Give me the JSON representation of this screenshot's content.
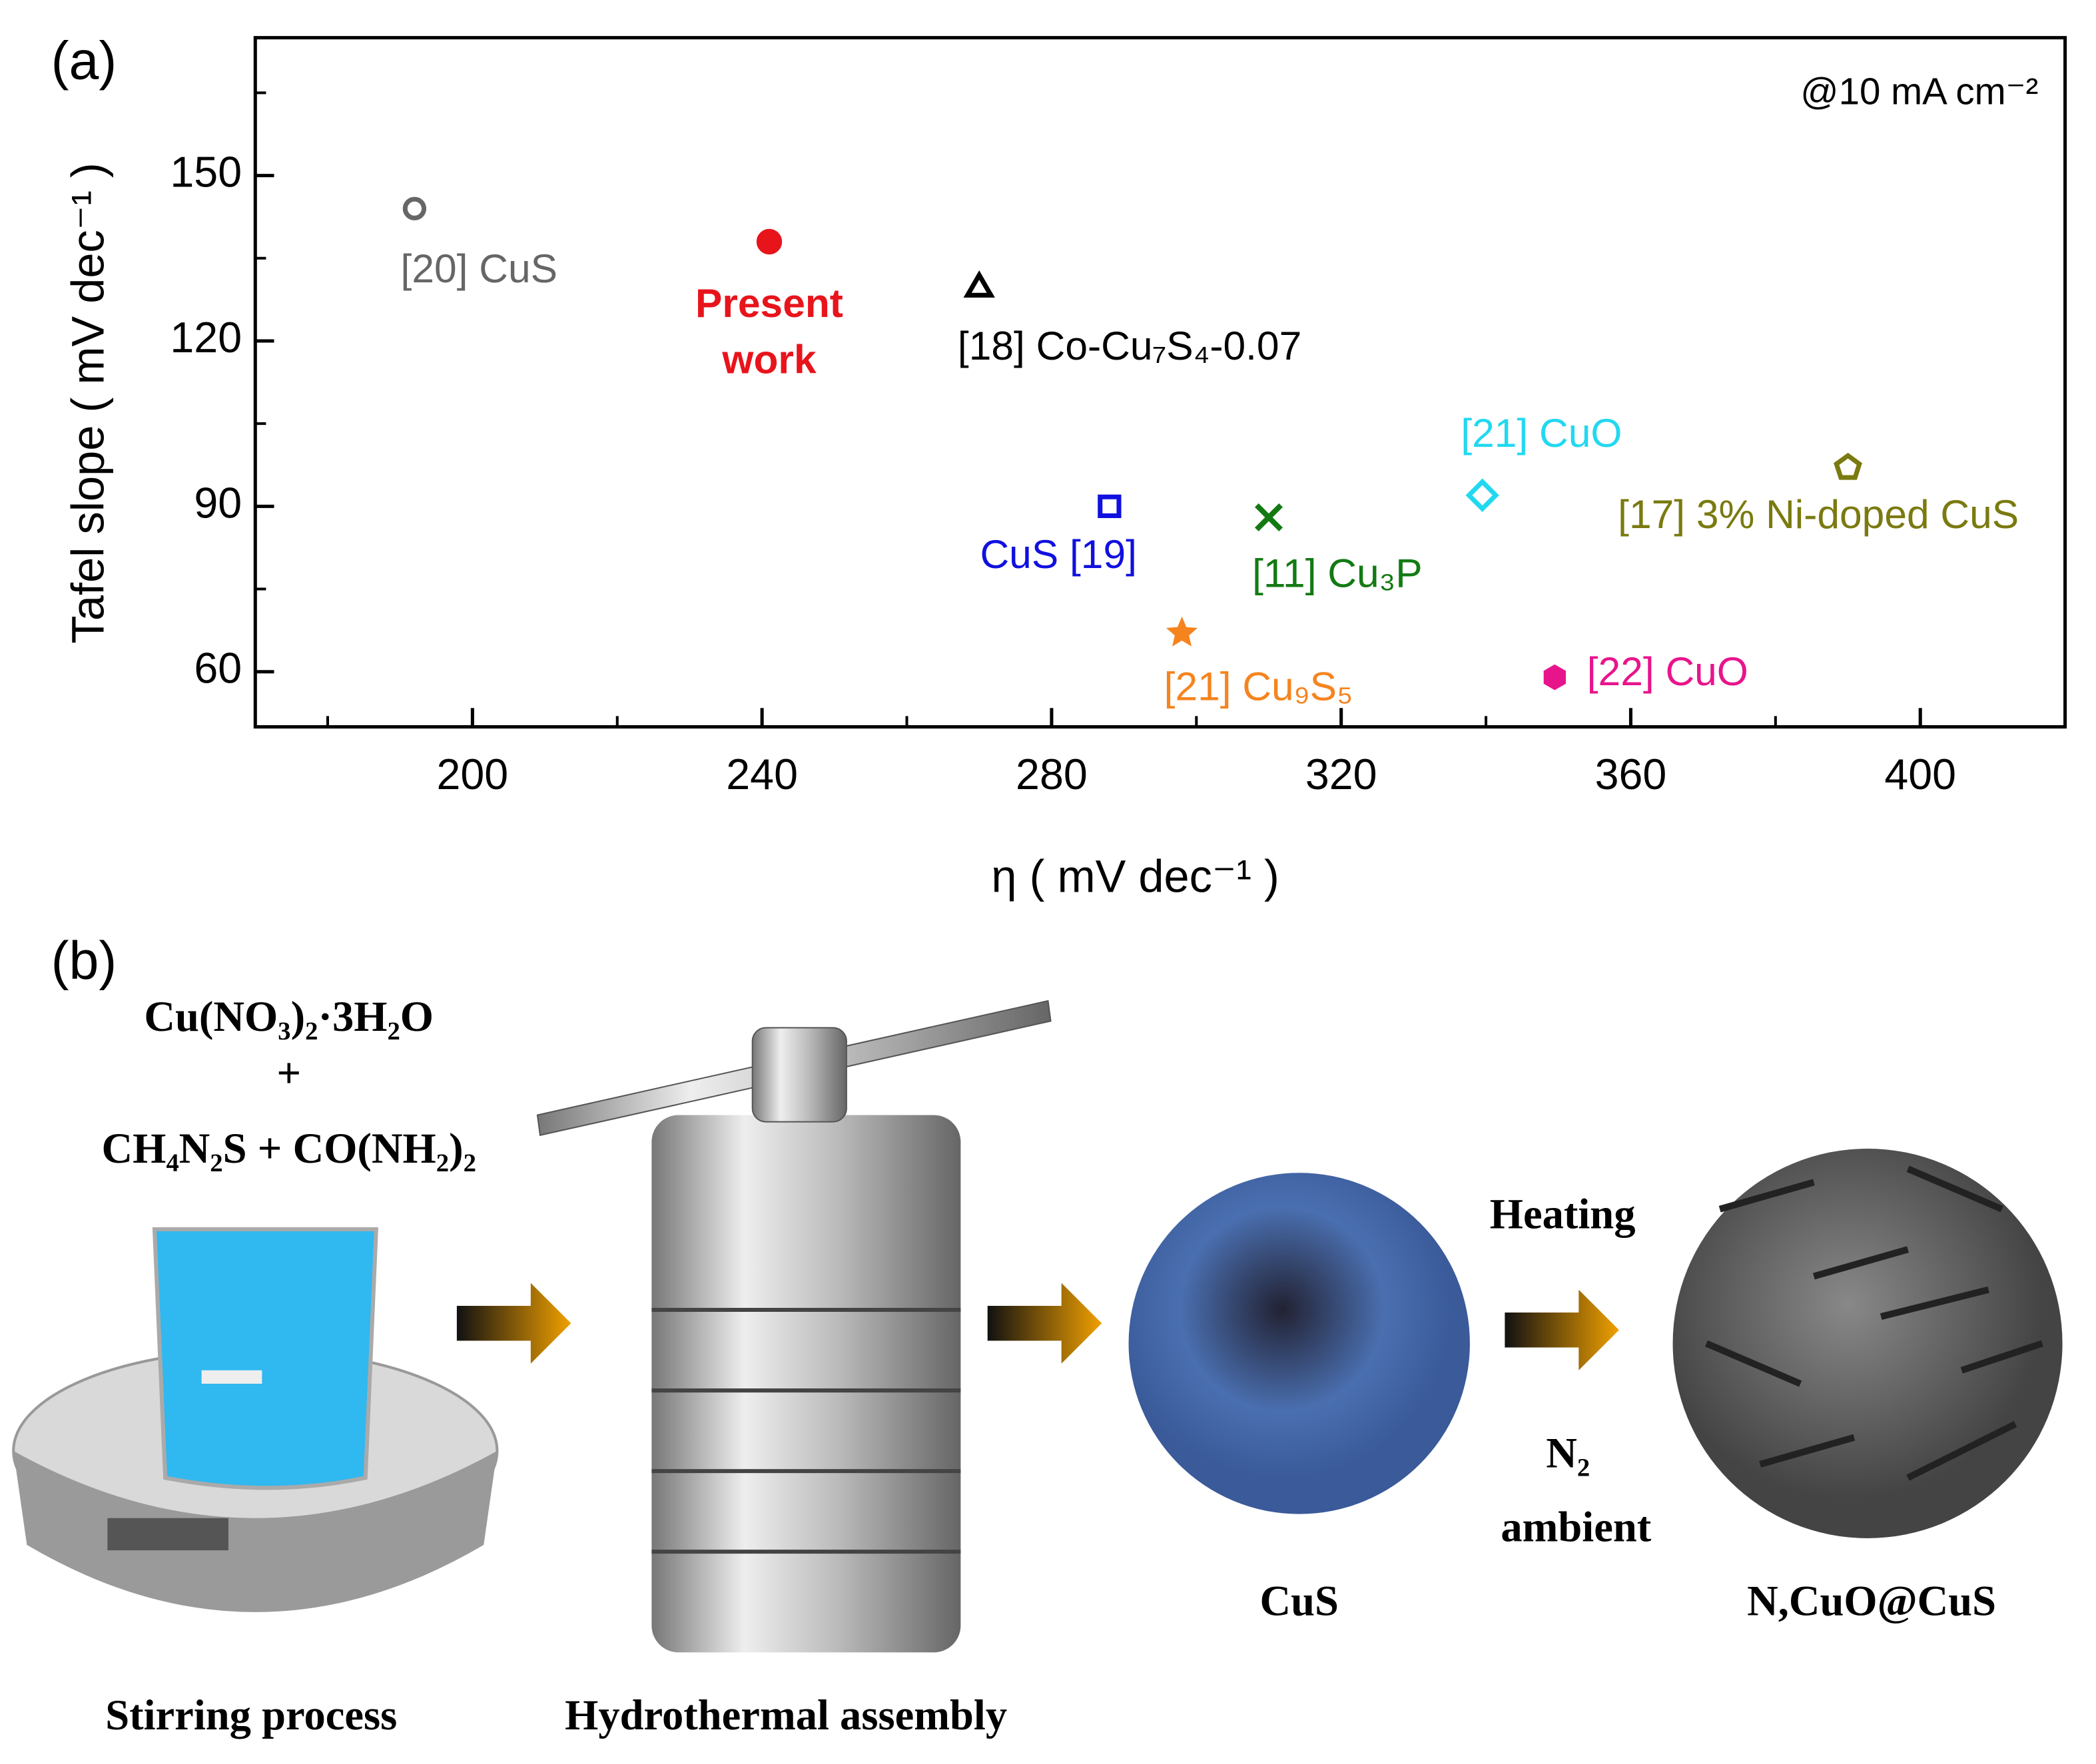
{
  "chart_data": {
    "type": "scatter",
    "panel_label": "(a)",
    "annotation": "@10 mA cm⁻²",
    "x_label": "η ( mV dec⁻¹ )",
    "y_label": "Tafel slope ( mV dec⁻¹ )",
    "xlim": [
      170,
      420
    ],
    "ylim": [
      50,
      175
    ],
    "xticks": [
      200,
      240,
      280,
      320,
      360,
      400
    ],
    "xminorticks": [
      180,
      220,
      260,
      300,
      340,
      380
    ],
    "yticks": [
      60,
      90,
      120,
      150
    ],
    "yminorticks": [
      75,
      105,
      135,
      165
    ],
    "series": [
      {
        "name": "[20] CuS",
        "color": "#666666",
        "marker": "open-circle",
        "x": [
          192
        ],
        "values": [
          144
        ]
      },
      {
        "name": "Present work",
        "color": "#e8141c",
        "marker": "filled-circle",
        "x": [
          241
        ],
        "values": [
          138
        ]
      },
      {
        "name": "[18] Co-Cu₇S₄-0.07",
        "color": "#000000",
        "marker": "triangle",
        "x": [
          270
        ],
        "values": [
          130
        ]
      },
      {
        "name": "CuS [19]",
        "color": "#1010e0",
        "marker": "square",
        "x": [
          288
        ],
        "values": [
          90
        ]
      },
      {
        "name": "[11] Cu₃P",
        "color": "#137a13",
        "marker": "cross",
        "x": [
          310
        ],
        "values": [
          88
        ]
      },
      {
        "name": "[21] CuO",
        "color": "#22d8f0",
        "marker": "diamond",
        "x": [
          339.5
        ],
        "values": [
          92
        ]
      },
      {
        "name": "[17] 3% Ni-doped CuS",
        "color": "#7a7a10",
        "marker": "pentagon",
        "x": [
          390
        ],
        "values": [
          97
        ]
      },
      {
        "name": "[21] Cu₉S₅",
        "color": "#f5841f",
        "marker": "star",
        "x": [
          298
        ],
        "values": [
          67
        ]
      },
      {
        "name": "[22] CuO",
        "color": "#e8148c",
        "marker": "hexagon",
        "x": [
          349.5
        ],
        "values": [
          59
        ]
      }
    ]
  },
  "scheme": {
    "panel_label": "(b)",
    "reagents": [
      "Cu(NO₃)₂·3H₂O",
      "+",
      "CH₄N₂S + CO(NH₂)₂"
    ],
    "steps": [
      "Stirring process",
      "Hydrothermal assembly",
      "CuS",
      "N,CuO@CuS"
    ],
    "condition": [
      "Heating",
      "N₂",
      "ambient"
    ]
  }
}
